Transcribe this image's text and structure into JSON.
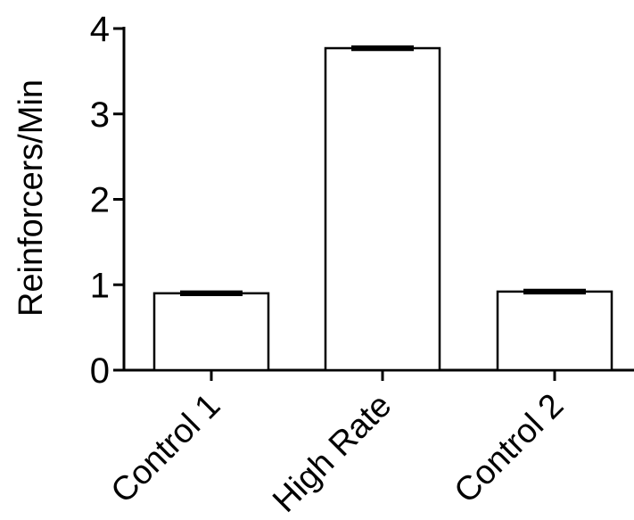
{
  "chart_data": {
    "type": "bar",
    "title": "",
    "xlabel": "",
    "ylabel": "Reinforcers/Min",
    "categories": [
      "Control 1",
      "High Rate",
      "Control 2"
    ],
    "values": [
      0.9,
      3.77,
      0.92
    ],
    "errors": [
      0.02,
      0.02,
      0.02
    ],
    "ylim": [
      0,
      4
    ],
    "yticks": [
      0,
      1,
      2,
      3,
      4
    ],
    "ytick_labels": [
      "0",
      "1",
      "2",
      "3",
      "4"
    ],
    "grid": false,
    "legend": "none"
  }
}
